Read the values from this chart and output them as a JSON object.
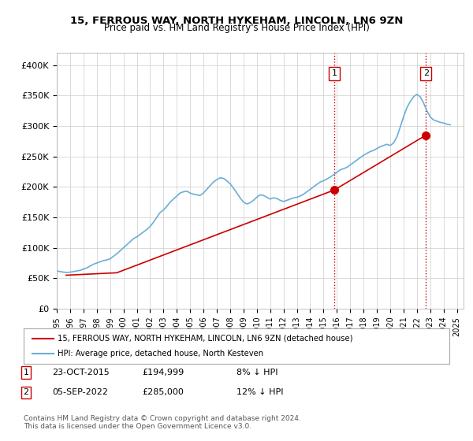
{
  "title": "15, FERROUS WAY, NORTH HYKEHAM, LINCOLN, LN6 9ZN",
  "subtitle": "Price paid vs. HM Land Registry's House Price Index (HPI)",
  "ylabel_ticks": [
    "£0",
    "£50K",
    "£100K",
    "£150K",
    "£200K",
    "£250K",
    "£300K",
    "£350K",
    "£400K"
  ],
  "ytick_vals": [
    0,
    50000,
    100000,
    150000,
    200000,
    250000,
    300000,
    350000,
    400000
  ],
  "ylim": [
    0,
    420000
  ],
  "xlim_start": 1995.0,
  "xlim_end": 2025.5,
  "hpi_color": "#6baed6",
  "price_color": "#cc0000",
  "marker1_date": 2015.82,
  "marker1_price": 194999,
  "marker2_date": 2022.68,
  "marker2_price": 285000,
  "vline_color": "#cc0000",
  "vline_style": ":",
  "annotation1_label": "1",
  "annotation2_label": "2",
  "legend_label1": "15, FERROUS WAY, NORTH HYKEHAM, LINCOLN, LN6 9ZN (detached house)",
  "legend_label2": "HPI: Average price, detached house, North Kesteven",
  "table_row1": [
    "1",
    "23-OCT-2015",
    "£194,999",
    "8% ↓ HPI"
  ],
  "table_row2": [
    "2",
    "05-SEP-2022",
    "£285,000",
    "12% ↓ HPI"
  ],
  "footer": "Contains HM Land Registry data © Crown copyright and database right 2024.\nThis data is licensed under the Open Government Licence v3.0.",
  "background_color": "#ffffff",
  "grid_color": "#cccccc",
  "hpi_years": [
    1995.0,
    1995.25,
    1995.5,
    1995.75,
    1996.0,
    1996.25,
    1996.5,
    1996.75,
    1997.0,
    1997.25,
    1997.5,
    1997.75,
    1998.0,
    1998.25,
    1998.5,
    1998.75,
    1999.0,
    1999.25,
    1999.5,
    1999.75,
    2000.0,
    2000.25,
    2000.5,
    2000.75,
    2001.0,
    2001.25,
    2001.5,
    2001.75,
    2002.0,
    2002.25,
    2002.5,
    2002.75,
    2003.0,
    2003.25,
    2003.5,
    2003.75,
    2004.0,
    2004.25,
    2004.5,
    2004.75,
    2005.0,
    2005.25,
    2005.5,
    2005.75,
    2006.0,
    2006.25,
    2006.5,
    2006.75,
    2007.0,
    2007.25,
    2007.5,
    2007.75,
    2008.0,
    2008.25,
    2008.5,
    2008.75,
    2009.0,
    2009.25,
    2009.5,
    2009.75,
    2010.0,
    2010.25,
    2010.5,
    2010.75,
    2011.0,
    2011.25,
    2011.5,
    2011.75,
    2012.0,
    2012.25,
    2012.5,
    2012.75,
    2013.0,
    2013.25,
    2013.5,
    2013.75,
    2014.0,
    2014.25,
    2014.5,
    2014.75,
    2015.0,
    2015.25,
    2015.5,
    2015.75,
    2016.0,
    2016.25,
    2016.5,
    2016.75,
    2017.0,
    2017.25,
    2017.5,
    2017.75,
    2018.0,
    2018.25,
    2018.5,
    2018.75,
    2019.0,
    2019.25,
    2019.5,
    2019.75,
    2020.0,
    2020.25,
    2020.5,
    2020.75,
    2021.0,
    2021.25,
    2021.5,
    2021.75,
    2022.0,
    2022.25,
    2022.5,
    2022.75,
    2023.0,
    2023.25,
    2023.5,
    2023.75,
    2024.0,
    2024.25,
    2024.5
  ],
  "hpi_values": [
    62000,
    61000,
    60000,
    59500,
    60000,
    61000,
    62000,
    63000,
    65000,
    67000,
    70000,
    73000,
    75000,
    77000,
    79000,
    80000,
    82000,
    86000,
    90000,
    95000,
    100000,
    105000,
    110000,
    115000,
    118000,
    122000,
    126000,
    130000,
    135000,
    142000,
    150000,
    158000,
    162000,
    168000,
    175000,
    180000,
    185000,
    190000,
    192000,
    193000,
    190000,
    188000,
    187000,
    186000,
    190000,
    196000,
    202000,
    208000,
    212000,
    215000,
    214000,
    210000,
    205000,
    198000,
    190000,
    182000,
    175000,
    172000,
    174000,
    178000,
    183000,
    187000,
    186000,
    183000,
    180000,
    182000,
    181000,
    178000,
    176000,
    178000,
    180000,
    182000,
    183000,
    185000,
    188000,
    192000,
    196000,
    200000,
    204000,
    208000,
    210000,
    213000,
    216000,
    220000,
    224000,
    228000,
    230000,
    232000,
    236000,
    240000,
    244000,
    248000,
    252000,
    255000,
    258000,
    260000,
    263000,
    266000,
    268000,
    270000,
    268000,
    272000,
    282000,
    298000,
    315000,
    330000,
    340000,
    348000,
    352000,
    348000,
    338000,
    325000,
    315000,
    310000,
    308000,
    306000,
    305000,
    303000,
    302000
  ],
  "price_years": [
    1995.7,
    1999.5,
    2015.82,
    2022.68
  ],
  "price_values": [
    55000,
    59000,
    194999,
    285000
  ]
}
